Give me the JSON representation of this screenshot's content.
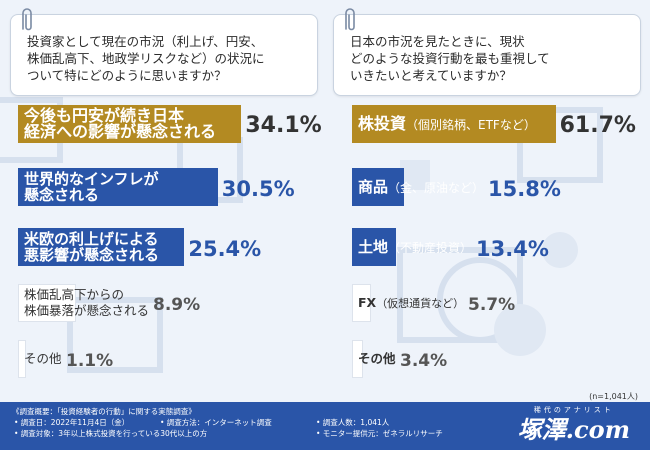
{
  "questions": {
    "left": [
      "投資家として現在の市況（利上げ、円安、",
      "株価乱高下、地政学リスクなど）の状況に",
      "ついて特にどのように思いますか？"
    ],
    "right": [
      "日本の市況を見たときに、現状",
      "どのような投資行動を最も重視して",
      "いきたいと考えていますか？"
    ]
  },
  "chart_data": [
    {
      "type": "bar",
      "orientation": "horizontal",
      "categories": [
        "今後も円安が続き日本経済への影響が懸念される",
        "世界的なインフレが懸念される",
        "米欧の利上げによる悪影響が懸念される",
        "株価乱高下からの株価暴落が懸念される",
        "その他"
      ],
      "label_lines": [
        [
          "今後も円安が続き日本",
          "経済への影響が懸念される"
        ],
        [
          "世界的なインフレが",
          "懸念される"
        ],
        [
          "米欧の利上げによる",
          "悪影響が懸念される"
        ],
        [
          "株価乱高下からの",
          "株価暴落が懸念される"
        ],
        [
          "その他"
        ]
      ],
      "values": [
        34.1,
        30.5,
        25.4,
        8.9,
        1.1
      ],
      "value_labels": [
        "34.1%",
        "30.5%",
        "25.4%",
        "8.9%",
        "1.1%"
      ],
      "colors": [
        "#b38a22",
        "#2a55a8",
        "#2a55a8",
        "#ffffff",
        "#ffffff"
      ],
      "text_colors": [
        "#ffffff",
        "#ffffff",
        "#ffffff",
        "#333333",
        "#333333"
      ],
      "value_colors": [
        "#333333",
        "#2a55a8",
        "#2a55a8",
        "#555555",
        "#555555"
      ]
    },
    {
      "type": "bar",
      "orientation": "horizontal",
      "categories": [
        "株投資（個別銘柄、ETFなど）",
        "商品（金、原油など）",
        "土地（不動産投資）",
        "FX（仮想通貨など）",
        "その他"
      ],
      "label_lines": [
        [
          "株投資",
          "（個別銘柄、ETFなど）"
        ],
        [
          "商品",
          "（金、原油など）"
        ],
        [
          "土地",
          "（不動産投資）"
        ],
        [
          "FX",
          "（仮想通貨など）"
        ],
        [
          "その他",
          ""
        ]
      ],
      "values": [
        61.7,
        15.8,
        13.4,
        5.7,
        3.4
      ],
      "value_labels": [
        "61.7%",
        "15.8%",
        "13.4%",
        "5.7%",
        "3.4%"
      ],
      "colors": [
        "#b38a22",
        "#2a55a8",
        "#2a55a8",
        "#ffffff",
        "#ffffff"
      ],
      "text_colors": [
        "#ffffff",
        "#ffffff",
        "#ffffff",
        "#333333",
        "#333333"
      ],
      "value_colors": [
        "#333333",
        "#2a55a8",
        "#2a55a8",
        "#555555",
        "#555555"
      ]
    }
  ],
  "sample_note": "(n=1,041人)",
  "footer": {
    "title": "《調査概要：「投資経験者の行動」に関する実態調査》",
    "items": [
      "• 調査日：2022年11月4日（金）",
      "• 調査方法：インターネット調査",
      "• 調査人数：1,041人",
      "• 調査対象：3年以上株式投資を行っている30代以上の方",
      "• モニター提供元：ゼネラルリサーチ"
    ],
    "brand_tagline": "稀代のアナリスト",
    "brand_logo": "塚澤.com"
  }
}
